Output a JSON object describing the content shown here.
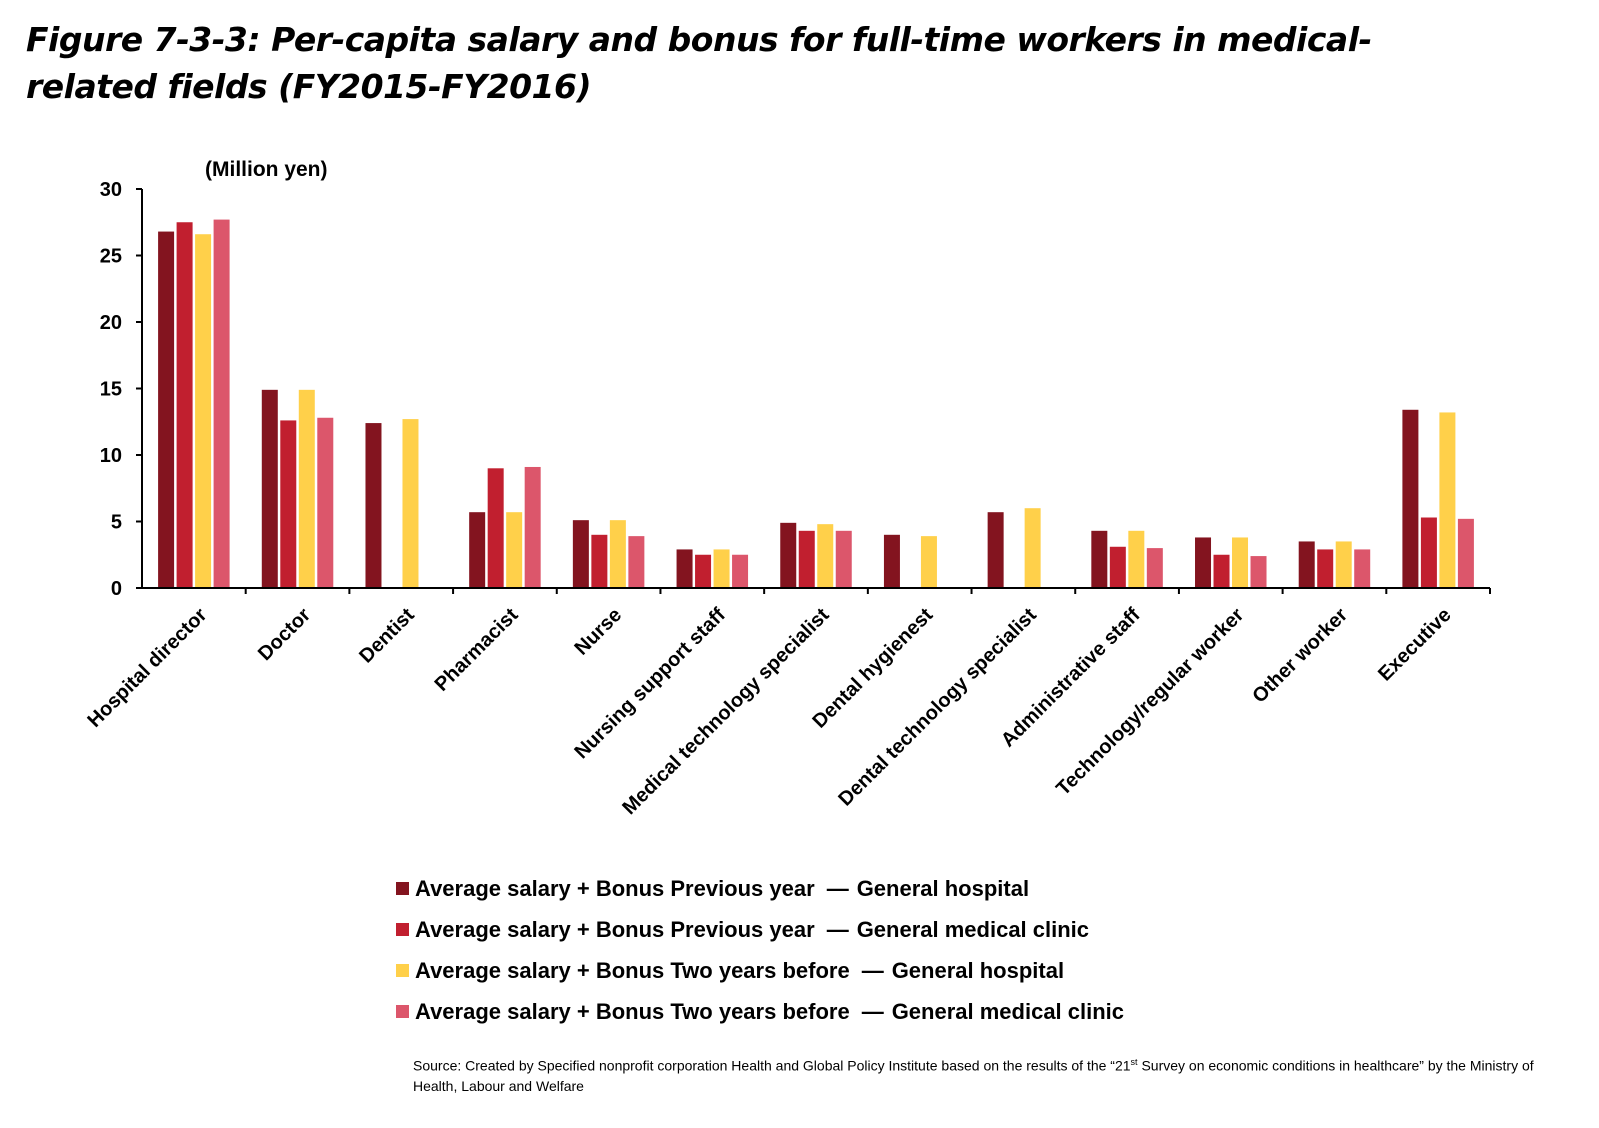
{
  "title": "Figure 7-3-3: Per-capita salary and bonus for full-time workers in medical-related fields (FY2015-FY2016)",
  "chart_data": {
    "type": "bar",
    "title": "Figure 7-3-3: Per-capita salary and bonus for full-time workers in medical-related fields (FY2015-FY2016)",
    "ylabel": "(Million yen)",
    "xlabel": "",
    "ylim": [
      0,
      30
    ],
    "yticks": [
      0,
      5,
      10,
      15,
      20,
      25,
      30
    ],
    "grid": false,
    "legend_position": "bottom",
    "categories": [
      "Hospital director",
      "Doctor",
      "Dentist",
      "Pharmacist",
      "Nurse",
      "Nursing support staff",
      "Medical technology specialist",
      "Dental hygienest",
      "Dental technology specialist",
      "Administrative staff",
      "Technology/regular worker",
      "Other worker",
      "Executive"
    ],
    "series": [
      {
        "name": "Average salary + Bonus Previous year",
        "group": "General hospital",
        "color": "#83141F",
        "values": [
          26.8,
          14.9,
          12.4,
          5.7,
          5.1,
          2.9,
          4.9,
          4.0,
          5.7,
          4.3,
          3.8,
          3.5,
          13.4
        ]
      },
      {
        "name": "Average salary + Bonus Previous year",
        "group": "General medical clinic",
        "color": "#C11F2F",
        "values": [
          27.5,
          12.6,
          null,
          9.0,
          4.0,
          2.5,
          4.3,
          null,
          null,
          3.1,
          2.5,
          2.9,
          5.3
        ]
      },
      {
        "name": "Average salary + Bonus Two years before",
        "group": "General hospital",
        "color": "#FFD04A",
        "values": [
          26.6,
          14.9,
          12.7,
          5.7,
          5.1,
          2.9,
          4.8,
          3.9,
          6.0,
          4.3,
          3.8,
          3.5,
          13.2
        ]
      },
      {
        "name": "Average salary + Bonus Two years before",
        "group": "General medical clinic",
        "color": "#DC566B",
        "values": [
          27.7,
          12.8,
          null,
          9.1,
          3.9,
          2.5,
          4.3,
          null,
          null,
          3.0,
          2.4,
          2.9,
          5.2
        ]
      }
    ]
  },
  "legend_separator": "—",
  "source": {
    "before": "Source: Created by Specified nonprofit corporation Health and Global Policy Institute based on the results of the “21",
    "sup": "st",
    "after": " Survey on economic conditions in healthcare” by the Ministry of Health, Labour and Welfare"
  }
}
